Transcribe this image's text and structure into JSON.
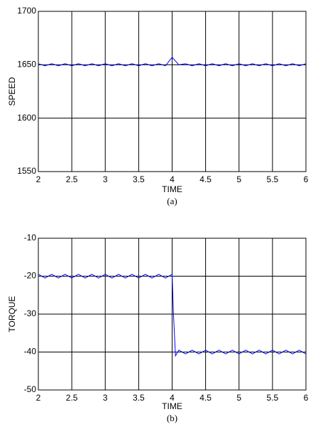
{
  "chart_data": [
    {
      "type": "line",
      "caption": "(a)",
      "xlabel": "TIME",
      "ylabel": "SPEED",
      "color": "#0000ff",
      "grid": true,
      "xlim": [
        2,
        6
      ],
      "xticks": [
        2,
        2.5,
        3,
        3.5,
        4,
        4.5,
        5,
        5.5,
        6
      ],
      "ylim": [
        1550,
        1700
      ],
      "yticks": [
        1550,
        1600,
        1650,
        1700
      ],
      "x": [
        2.0,
        2.1,
        2.2,
        2.3,
        2.4,
        2.5,
        2.6,
        2.7,
        2.8,
        2.9,
        3.0,
        3.1,
        3.2,
        3.3,
        3.4,
        3.5,
        3.6,
        3.7,
        3.8,
        3.9,
        4.0,
        4.1,
        4.2,
        4.3,
        4.4,
        4.5,
        4.6,
        4.7,
        4.8,
        4.9,
        5.0,
        5.1,
        5.2,
        5.3,
        5.4,
        5.5,
        5.6,
        5.7,
        5.8,
        5.9,
        6.0
      ],
      "values": [
        1651,
        1649,
        1651,
        1649,
        1651,
        1649,
        1651,
        1649,
        1651,
        1649,
        1651,
        1649,
        1651,
        1649,
        1651,
        1649,
        1651,
        1649,
        1651,
        1649,
        1657,
        1650,
        1651,
        1649,
        1651,
        1649,
        1651,
        1649,
        1651,
        1649,
        1651,
        1649,
        1651,
        1649,
        1651,
        1649,
        1651,
        1649,
        1651,
        1649,
        1651
      ]
    },
    {
      "type": "line",
      "caption": "(b)",
      "xlabel": "TIME",
      "ylabel": "TORQUE",
      "color": "#0000ff",
      "grid": true,
      "xlim": [
        2,
        6
      ],
      "xticks": [
        2,
        2.5,
        3,
        3.5,
        4,
        4.5,
        5,
        5.5,
        6
      ],
      "ylim": [
        -50,
        -10
      ],
      "yticks": [
        -50,
        -40,
        -30,
        -20,
        -10
      ],
      "x": [
        2.0,
        2.1,
        2.2,
        2.3,
        2.4,
        2.5,
        2.6,
        2.7,
        2.8,
        2.9,
        3.0,
        3.1,
        3.2,
        3.3,
        3.4,
        3.5,
        3.6,
        3.7,
        3.8,
        3.9,
        4.0,
        4.02,
        4.05,
        4.1,
        4.2,
        4.3,
        4.4,
        4.5,
        4.6,
        4.7,
        4.8,
        4.9,
        5.0,
        5.1,
        5.2,
        5.3,
        5.4,
        5.5,
        5.6,
        5.7,
        5.8,
        5.9,
        6.0
      ],
      "values": [
        -19.5,
        -20.5,
        -19.5,
        -20.5,
        -19.5,
        -20.5,
        -19.5,
        -20.5,
        -19.5,
        -20.5,
        -19.5,
        -20.5,
        -19.5,
        -20.5,
        -19.5,
        -20.5,
        -19.5,
        -20.5,
        -19.5,
        -20.5,
        -19.5,
        -30,
        -41,
        -39.5,
        -40.5,
        -39.5,
        -40.5,
        -39.5,
        -40.5,
        -39.5,
        -40.5,
        -39.5,
        -40.5,
        -39.5,
        -40.5,
        -39.5,
        -40.5,
        -39.5,
        -40.5,
        -39.5,
        -40.5,
        -39.5,
        -40.5
      ]
    }
  ]
}
